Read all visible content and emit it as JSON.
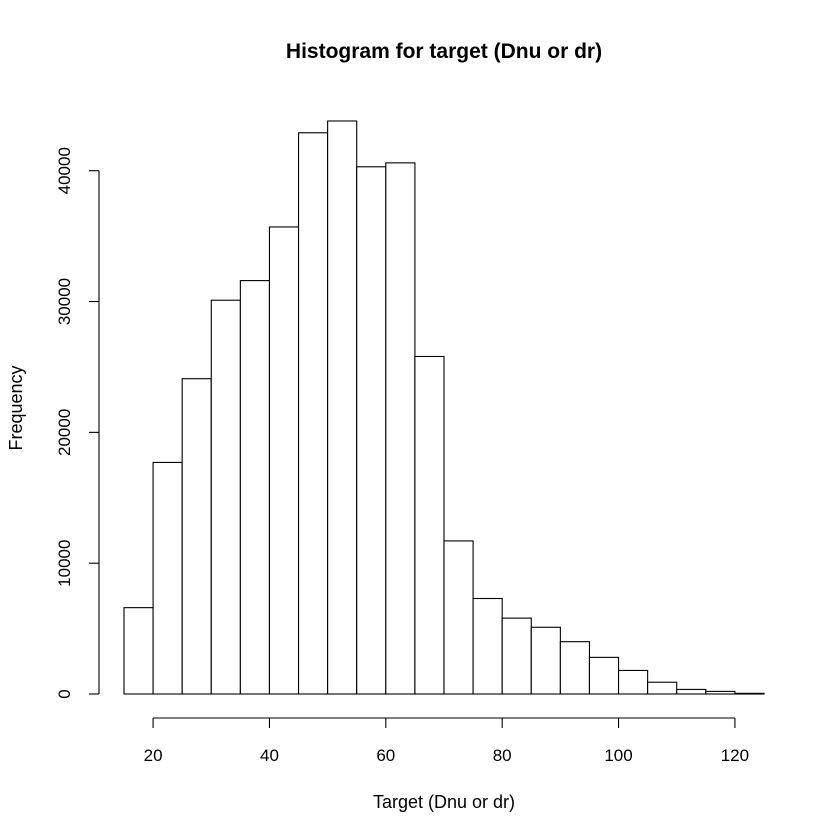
{
  "chart_data": {
    "type": "bar",
    "title": "Histogram for target (Dnu or dr)",
    "xlabel": "Target (Dnu or dr)",
    "ylabel": "Frequency",
    "bin_edges": [
      15,
      20,
      25,
      30,
      35,
      40,
      45,
      50,
      55,
      60,
      65,
      70,
      75,
      80,
      85,
      90,
      95,
      100,
      105,
      110,
      115,
      120,
      125
    ],
    "values": [
      6600,
      17700,
      24100,
      30100,
      31600,
      35700,
      42900,
      43800,
      40300,
      40600,
      25800,
      11700,
      7300,
      5800,
      5100,
      4000,
      2800,
      1800,
      900,
      350,
      200,
      50
    ],
    "xlim": [
      15,
      125
    ],
    "ylim": [
      0,
      43800
    ],
    "x_ticks": [
      20,
      40,
      60,
      80,
      100,
      120
    ],
    "y_ticks": [
      0,
      10000,
      20000,
      30000,
      40000
    ],
    "x_tick_labels": [
      "20",
      "40",
      "60",
      "80",
      "100",
      "120"
    ],
    "y_tick_labels": [
      "0",
      "10000",
      "20000",
      "30000",
      "40000"
    ],
    "grid": false,
    "legend": "none",
    "bar_fill": "#ffffff",
    "bar_stroke": "#000000"
  }
}
